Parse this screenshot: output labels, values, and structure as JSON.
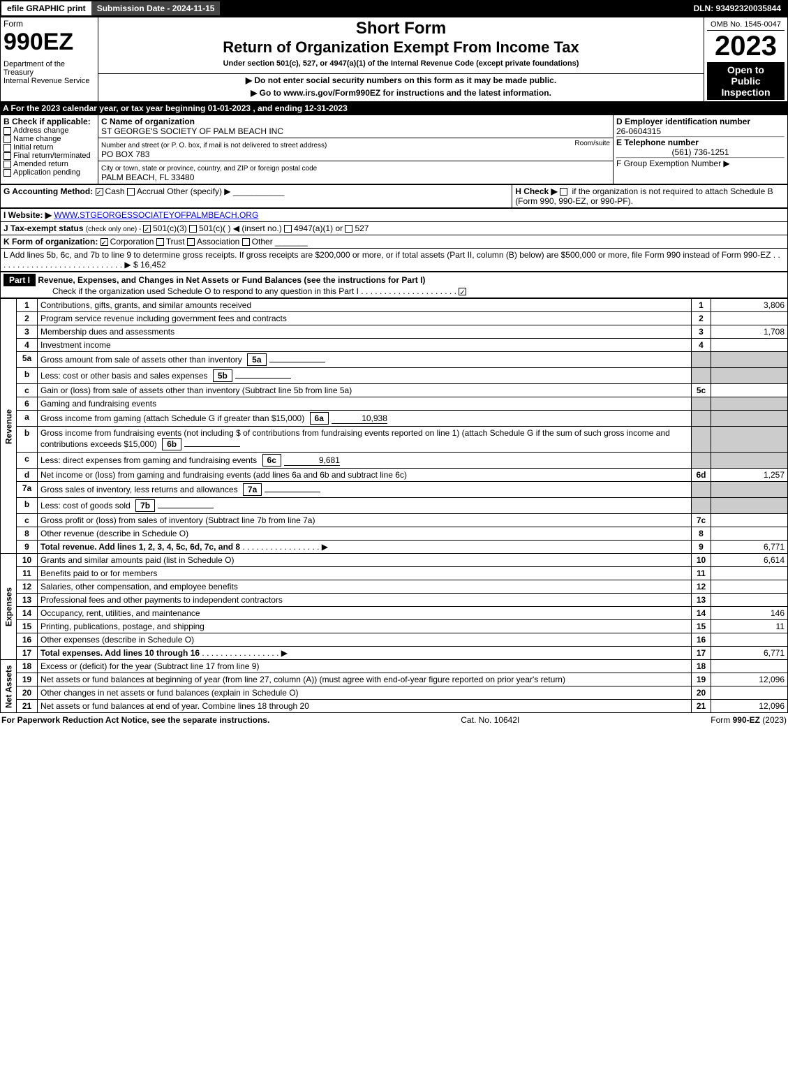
{
  "top": {
    "efile": "efile GRAPHIC print",
    "submission": "Submission Date - 2024-11-15",
    "dln": "DLN: 93492320035844"
  },
  "header": {
    "form_word": "Form",
    "form_num": "990EZ",
    "dept": "Department of the Treasury\nInternal Revenue Service",
    "title1": "Short Form",
    "title2": "Return of Organization Exempt From Income Tax",
    "subtitle": "Under section 501(c), 527, or 4947(a)(1) of the Internal Revenue Code (except private foundations)",
    "note1": "▶ Do not enter social security numbers on this form as it may be made public.",
    "note2": "▶ Go to www.irs.gov/Form990EZ for instructions and the latest information.",
    "omb": "OMB No. 1545-0047",
    "year": "2023",
    "open1": "Open to",
    "open2": "Public",
    "open3": "Inspection"
  },
  "a_line": "A  For the 2023 calendar year, or tax year beginning 01-01-2023 , and ending 12-31-2023",
  "b": {
    "label": "B  Check if applicable:",
    "opts": [
      "Address change",
      "Name change",
      "Initial return",
      "Final return/terminated",
      "Amended return",
      "Application pending"
    ]
  },
  "c": {
    "name_label": "C Name of organization",
    "name": "ST GEORGE'S SOCIETY OF PALM BEACH INC",
    "street_label": "Number and street (or P. O. box, if mail is not delivered to street address)",
    "street": "PO BOX 783",
    "room_label": "Room/suite",
    "city_label": "City or town, state or province, country, and ZIP or foreign postal code",
    "city": "PALM BEACH, FL  33480"
  },
  "d": {
    "label": "D Employer identification number",
    "val": "26-0604315"
  },
  "e": {
    "label": "E Telephone number",
    "val": "(561) 736-1251"
  },
  "f": {
    "label": "F Group Exemption Number   ▶"
  },
  "g": {
    "label": "G Accounting Method:",
    "cash": "Cash",
    "accrual": "Accrual",
    "other": "Other (specify) ▶"
  },
  "h": {
    "label": "H  Check ▶",
    "txt": "if the organization is not required to attach Schedule B (Form 990, 990-EZ, or 990-PF)."
  },
  "i": {
    "label": "I Website: ▶",
    "val": "WWW.STGEORGESSOCIATEYOFPALMBEACH.ORG"
  },
  "j": {
    "label": "J Tax-exempt status",
    "txt": "(check only one) - ",
    "o1": "501(c)(3)",
    "o2": "501(c)( ) ◀ (insert no.)",
    "o3": "4947(a)(1) or",
    "o4": "527"
  },
  "k": {
    "label": "K Form of organization:",
    "o1": "Corporation",
    "o2": "Trust",
    "o3": "Association",
    "o4": "Other"
  },
  "l": {
    "txt": "L Add lines 5b, 6c, and 7b to line 9 to determine gross receipts. If gross receipts are $200,000 or more, or if total assets (Part II, column (B) below) are $500,000 or more, file Form 990 instead of Form 990-EZ",
    "arrow": "▶ $",
    "val": "16,452"
  },
  "part1": {
    "label": "Part I",
    "title": "Revenue, Expenses, and Changes in Net Assets or Fund Balances (see the instructions for Part I)",
    "sub": "Check if the organization used Schedule O to respond to any question in this Part I"
  },
  "side": {
    "rev": "Revenue",
    "exp": "Expenses",
    "net": "Net Assets"
  },
  "lines": [
    {
      "n": "1",
      "d": "Contributions, gifts, grants, and similar amounts received",
      "r": "1",
      "a": "3,806"
    },
    {
      "n": "2",
      "d": "Program service revenue including government fees and contracts",
      "r": "2",
      "a": ""
    },
    {
      "n": "3",
      "d": "Membership dues and assessments",
      "r": "3",
      "a": "1,708"
    },
    {
      "n": "4",
      "d": "Investment income",
      "r": "4",
      "a": ""
    },
    {
      "n": "5a",
      "d": "Gross amount from sale of assets other than inventory",
      "box": "5a",
      "bv": ""
    },
    {
      "n": "b",
      "d": "Less: cost or other basis and sales expenses",
      "box": "5b",
      "bv": ""
    },
    {
      "n": "c",
      "d": "Gain or (loss) from sale of assets other than inventory (Subtract line 5b from line 5a)",
      "r": "5c",
      "a": ""
    },
    {
      "n": "6",
      "d": "Gaming and fundraising events"
    },
    {
      "n": "a",
      "d": "Gross income from gaming (attach Schedule G if greater than $15,000)",
      "box": "6a",
      "bv": "10,938"
    },
    {
      "n": "b",
      "d": "Gross income from fundraising events (not including $               of contributions from fundraising events reported on line 1) (attach Schedule G if the sum of such gross income and contributions exceeds $15,000)",
      "box": "6b",
      "bv": ""
    },
    {
      "n": "c",
      "d": "Less: direct expenses from gaming and fundraising events",
      "box": "6c",
      "bv": "9,681"
    },
    {
      "n": "d",
      "d": "Net income or (loss) from gaming and fundraising events (add lines 6a and 6b and subtract line 6c)",
      "r": "6d",
      "a": "1,257"
    },
    {
      "n": "7a",
      "d": "Gross sales of inventory, less returns and allowances",
      "box": "7a",
      "bv": ""
    },
    {
      "n": "b",
      "d": "Less: cost of goods sold",
      "box": "7b",
      "bv": ""
    },
    {
      "n": "c",
      "d": "Gross profit or (loss) from sales of inventory (Subtract line 7b from line 7a)",
      "r": "7c",
      "a": ""
    },
    {
      "n": "8",
      "d": "Other revenue (describe in Schedule O)",
      "r": "8",
      "a": ""
    },
    {
      "n": "9",
      "d": "Total revenue. Add lines 1, 2, 3, 4, 5c, 6d, 7c, and 8",
      "r": "9",
      "a": "6,771",
      "arrow": "▶",
      "bold": true
    }
  ],
  "exp_lines": [
    {
      "n": "10",
      "d": "Grants and similar amounts paid (list in Schedule O)",
      "r": "10",
      "a": "6,614"
    },
    {
      "n": "11",
      "d": "Benefits paid to or for members",
      "r": "11",
      "a": ""
    },
    {
      "n": "12",
      "d": "Salaries, other compensation, and employee benefits",
      "r": "12",
      "a": ""
    },
    {
      "n": "13",
      "d": "Professional fees and other payments to independent contractors",
      "r": "13",
      "a": ""
    },
    {
      "n": "14",
      "d": "Occupancy, rent, utilities, and maintenance",
      "r": "14",
      "a": "146"
    },
    {
      "n": "15",
      "d": "Printing, publications, postage, and shipping",
      "r": "15",
      "a": "11"
    },
    {
      "n": "16",
      "d": "Other expenses (describe in Schedule O)",
      "r": "16",
      "a": ""
    },
    {
      "n": "17",
      "d": "Total expenses. Add lines 10 through 16",
      "r": "17",
      "a": "6,771",
      "arrow": "▶",
      "bold": true
    }
  ],
  "net_lines": [
    {
      "n": "18",
      "d": "Excess or (deficit) for the year (Subtract line 17 from line 9)",
      "r": "18",
      "a": ""
    },
    {
      "n": "19",
      "d": "Net assets or fund balances at beginning of year (from line 27, column (A)) (must agree with end-of-year figure reported on prior year's return)",
      "r": "19",
      "a": "12,096"
    },
    {
      "n": "20",
      "d": "Other changes in net assets or fund balances (explain in Schedule O)",
      "r": "20",
      "a": ""
    },
    {
      "n": "21",
      "d": "Net assets or fund balances at end of year. Combine lines 18 through 20",
      "r": "21",
      "a": "12,096"
    }
  ],
  "footer": {
    "l": "For Paperwork Reduction Act Notice, see the separate instructions.",
    "c": "Cat. No. 10642I",
    "r": "Form 990-EZ (2023)"
  }
}
